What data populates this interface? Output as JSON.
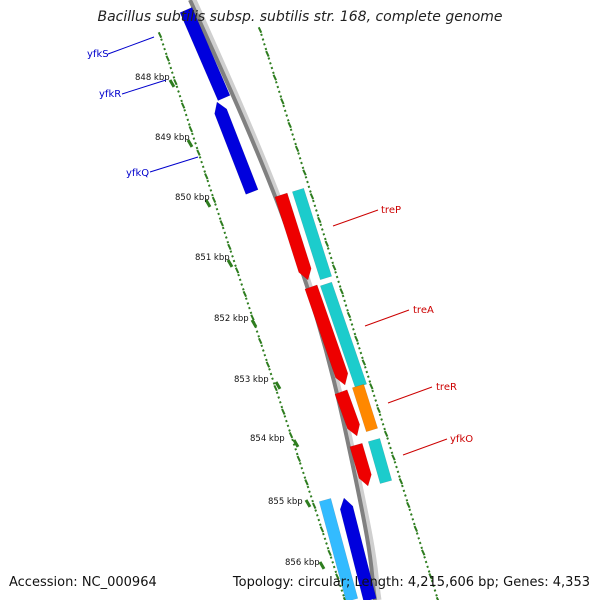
{
  "title": "Bacillus subtilis subsp. subtilis str. 168, complete genome",
  "accession_label": "Accession: NC_000964",
  "summary": "Topology: circular; Length: 4,215,606 bp; Genes: 4,353",
  "colors": {
    "backbone": "#808080",
    "tick": "#2e7d1f",
    "forward_cds": "#0000dd",
    "reverse_cds": "#ee0000",
    "cyan_feature": "#1ccccc",
    "orange_feature": "#ff8800",
    "blue_label": "#0000cc",
    "red_label": "#cc0000"
  },
  "scale_labels": [
    "848 kbp",
    "849 kbp",
    "850 kbp",
    "851 kbp",
    "852 kbp",
    "853 kbp",
    "854 kbp",
    "855 kbp",
    "856 kbp"
  ],
  "gene_labels": [
    {
      "text": "yfkS",
      "color": "blue"
    },
    {
      "text": "yfkR",
      "color": "blue"
    },
    {
      "text": "yfkQ",
      "color": "blue"
    },
    {
      "text": "treP",
      "color": "red"
    },
    {
      "text": "treA",
      "color": "red"
    },
    {
      "text": "treR",
      "color": "red"
    },
    {
      "text": "yfkO",
      "color": "red"
    }
  ]
}
